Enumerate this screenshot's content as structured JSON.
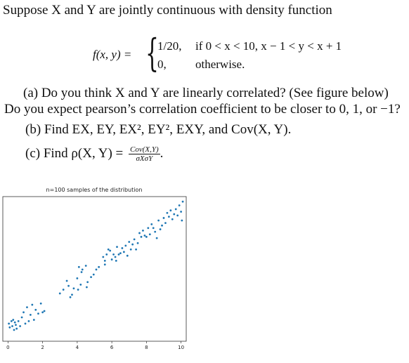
{
  "problem": {
    "intro": "Suppose X and Y are jointly continuous with density function",
    "density_lhs": "f(x, y) =",
    "case1_value": "1/20,",
    "case1_condition": "if 0 < x < 10,  x − 1 < y < x + 1",
    "case2_value": "0,",
    "case2_condition": "otherwise.",
    "part_a_line1": "(a) Do you think X and Y are linearly correlated? (See figure below)",
    "part_a_line2": "Do you expect pearson’s correlation coefficient to be closer to 0, 1, or −1?",
    "part_b": "(b) Find EX, EY, EX², EY², EXY, and Cov(X, Y).",
    "part_c_prefix": "(c) Find ρ(X, Y) =",
    "part_c_num": "Cov(X,Y)",
    "part_c_den": "σXσY",
    "part_c_suffix": "."
  },
  "chart_data": {
    "type": "scatter",
    "title": "n=100 samples of the distribution",
    "xlim": [
      -0.3,
      10.3
    ],
    "ylim": [
      -0.7,
      10.8
    ],
    "xticks": [
      0,
      2,
      4,
      6,
      8,
      10
    ],
    "xtick_labels": [
      "0",
      "2",
      "4",
      "6",
      "8",
      "10"
    ],
    "point_color": "#1f77b4",
    "points": [
      [
        0.05,
        0.7
      ],
      [
        0.1,
        0.4
      ],
      [
        0.2,
        0.9
      ],
      [
        0.25,
        0.5
      ],
      [
        0.3,
        1.0
      ],
      [
        0.35,
        0.2
      ],
      [
        0.4,
        0.8
      ],
      [
        0.45,
        0.6
      ],
      [
        0.5,
        0.3
      ],
      [
        0.6,
        0.9
      ],
      [
        0.7,
        0.5
      ],
      [
        0.8,
        1.2
      ],
      [
        0.9,
        1.6
      ],
      [
        1.0,
        0.7
      ],
      [
        1.1,
        2.0
      ],
      [
        1.2,
        0.9
      ],
      [
        1.3,
        1.4
      ],
      [
        1.4,
        2.2
      ],
      [
        1.5,
        1.0
      ],
      [
        1.6,
        1.8
      ],
      [
        1.75,
        1.5
      ],
      [
        1.9,
        2.3
      ],
      [
        2.0,
        1.6
      ],
      [
        2.1,
        1.7
      ],
      [
        3.0,
        3.1
      ],
      [
        3.2,
        3.4
      ],
      [
        3.4,
        4.1
      ],
      [
        3.5,
        3.7
      ],
      [
        3.6,
        2.8
      ],
      [
        3.7,
        3.0
      ],
      [
        3.8,
        3.5
      ],
      [
        4.0,
        4.3
      ],
      [
        4.05,
        3.4
      ],
      [
        4.1,
        5.2
      ],
      [
        4.2,
        3.8
      ],
      [
        4.25,
        4.8
      ],
      [
        4.3,
        5.0
      ],
      [
        4.5,
        5.3
      ],
      [
        4.55,
        3.6
      ],
      [
        4.6,
        4.0
      ],
      [
        4.8,
        4.4
      ],
      [
        4.95,
        4.6
      ],
      [
        5.1,
        5.0
      ],
      [
        5.25,
        5.2
      ],
      [
        5.6,
        5.4
      ],
      [
        5.5,
        6.0
      ],
      [
        5.6,
        5.7
      ],
      [
        5.7,
        6.2
      ],
      [
        5.8,
        6.6
      ],
      [
        5.9,
        6.5
      ],
      [
        6.0,
        5.8
      ],
      [
        6.1,
        6.2
      ],
      [
        6.2,
        6.0
      ],
      [
        6.25,
        5.7
      ],
      [
        6.3,
        6.8
      ],
      [
        6.4,
        6.2
      ],
      [
        6.5,
        6.3
      ],
      [
        6.6,
        6.7
      ],
      [
        6.7,
        6.4
      ],
      [
        6.8,
        6.9
      ],
      [
        6.9,
        6.1
      ],
      [
        7.0,
        7.2
      ],
      [
        7.1,
        6.6
      ],
      [
        7.2,
        7.0
      ],
      [
        7.3,
        7.4
      ],
      [
        7.4,
        6.6
      ],
      [
        7.5,
        7.1
      ],
      [
        7.6,
        7.9
      ],
      [
        7.7,
        7.6
      ],
      [
        7.8,
        8.1
      ],
      [
        7.9,
        7.7
      ],
      [
        8.0,
        7.6
      ],
      [
        8.1,
        8.3
      ],
      [
        8.2,
        7.8
      ],
      [
        8.3,
        8.6
      ],
      [
        8.4,
        8.3
      ],
      [
        8.5,
        8.0
      ],
      [
        8.6,
        7.5
      ],
      [
        8.7,
        8.9
      ],
      [
        8.8,
        8.2
      ],
      [
        8.9,
        8.5
      ],
      [
        9.0,
        9.1
      ],
      [
        9.1,
        8.7
      ],
      [
        9.2,
        9.5
      ],
      [
        9.3,
        9.2
      ],
      [
        9.4,
        9.7
      ],
      [
        9.5,
        9.0
      ],
      [
        9.6,
        9.4
      ],
      [
        9.7,
        9.8
      ],
      [
        9.8,
        9.3
      ],
      [
        9.9,
        10.1
      ],
      [
        10.0,
        9.6
      ],
      [
        10.05,
        8.9
      ],
      [
        10.1,
        10.4
      ]
    ]
  }
}
